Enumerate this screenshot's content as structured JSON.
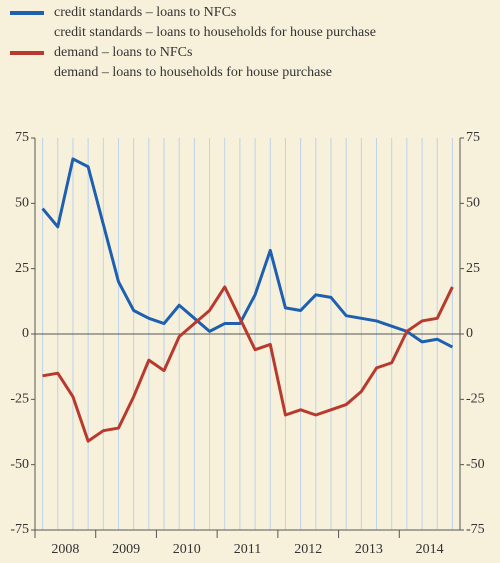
{
  "chart_data": {
    "type": "line",
    "categories": [
      "2008",
      null,
      null,
      null,
      "2009",
      null,
      null,
      null,
      "2010",
      null,
      null,
      null,
      "2011",
      null,
      null,
      null,
      "2012",
      null,
      null,
      null,
      "2013",
      null,
      null,
      null,
      "2014",
      null,
      null,
      null
    ],
    "series": [
      {
        "name": "credit standards – loans to NFCs",
        "color": "#1f5fb0",
        "values": [
          48,
          41,
          67,
          64,
          42,
          20,
          9,
          6,
          4,
          11,
          6,
          1,
          4,
          4,
          15,
          32,
          10,
          9,
          15,
          14,
          7,
          6,
          5,
          3,
          1,
          -3,
          -2,
          -5
        ]
      },
      {
        "name": "credit standards – loans to households for house purchase",
        "values": [
          null,
          null,
          null,
          null,
          null,
          null,
          null,
          null,
          null,
          null,
          null,
          null,
          null,
          null,
          null,
          null,
          null,
          null,
          null,
          null,
          null,
          null,
          null,
          null,
          null,
          null,
          null,
          null
        ]
      },
      {
        "name": "demand – loans to NFCs",
        "color": "#b83a2e",
        "values": [
          -16,
          -15,
          -24,
          -41,
          -37,
          -36,
          -24,
          -10,
          -14,
          -1,
          4,
          9,
          18,
          6,
          -6,
          -4,
          -31,
          -29,
          -31,
          -29,
          -27,
          -22,
          -13,
          -11,
          1,
          5,
          6,
          18
        ]
      },
      {
        "name": "demand – loans to households for house purchase",
        "values": [
          null,
          null,
          null,
          null,
          null,
          null,
          null,
          null,
          null,
          null,
          null,
          null,
          null,
          null,
          null,
          null,
          null,
          null,
          null,
          null,
          null,
          null,
          null,
          null,
          null,
          null,
          null,
          null
        ]
      }
    ],
    "ylim": [
      -75,
      75
    ],
    "yticks": [
      -75,
      -50,
      -25,
      0,
      25,
      50,
      75
    ],
    "y2lim": [
      -75,
      75
    ],
    "y2ticks": [
      -75,
      -50,
      -25,
      0,
      25,
      50,
      75
    ],
    "grid": true
  }
}
